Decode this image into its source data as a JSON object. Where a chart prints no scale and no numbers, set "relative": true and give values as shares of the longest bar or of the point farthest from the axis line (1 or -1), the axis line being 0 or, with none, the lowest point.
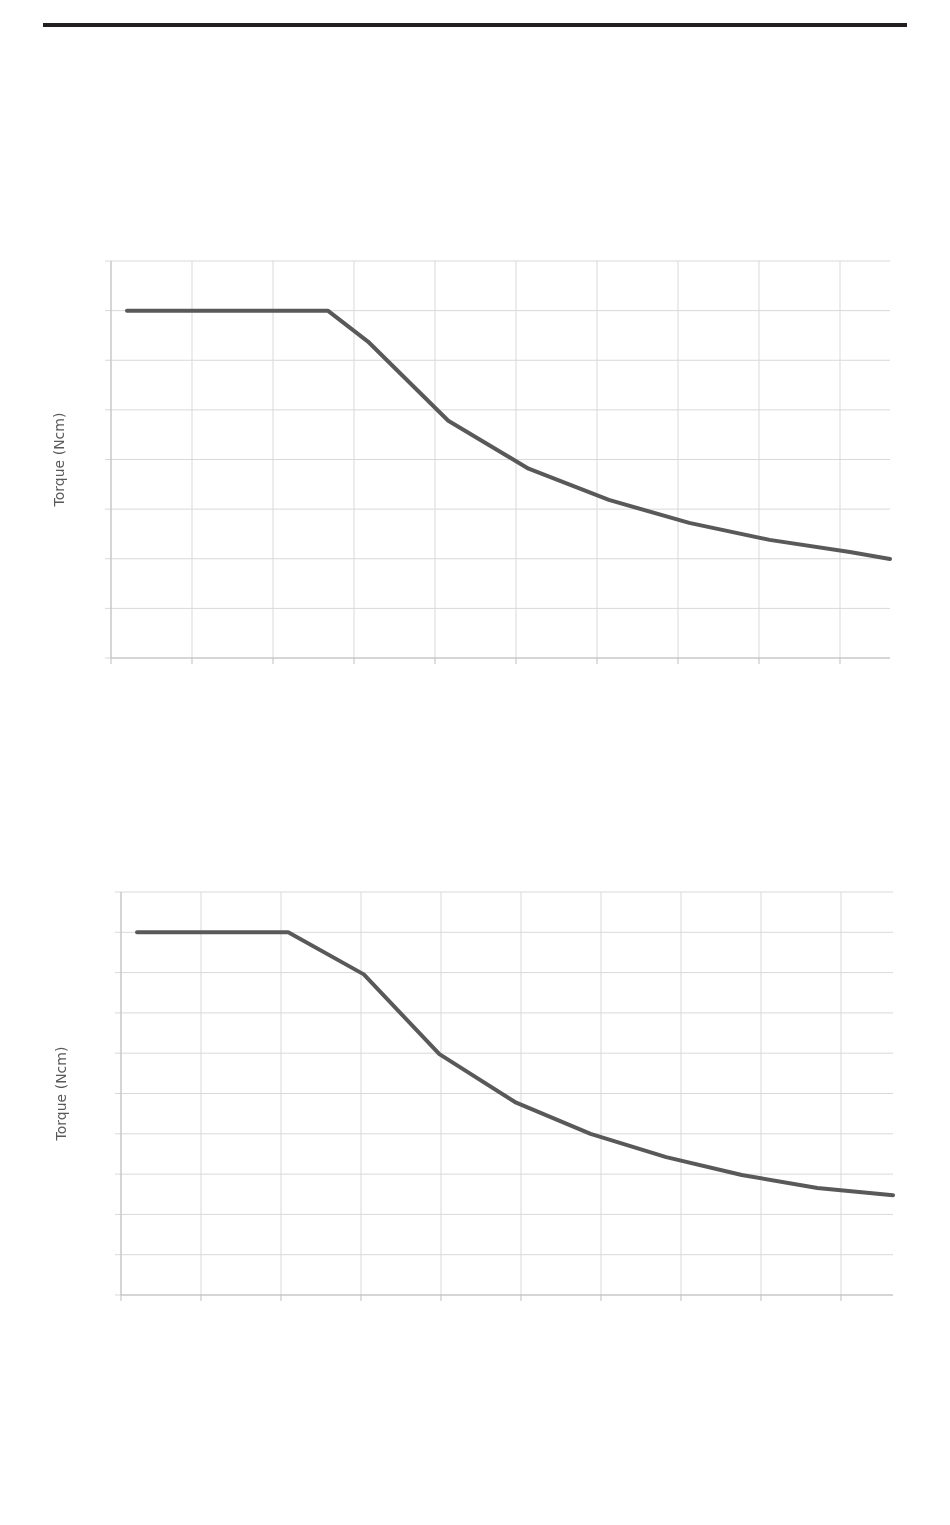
{
  "chart_data": [
    {
      "type": "line",
      "ylabel": "Torque (Ncm)",
      "relative": true,
      "grid": true,
      "marker": "none",
      "line_style": "solid",
      "categories": [
        null,
        null,
        null,
        null,
        null,
        null,
        null,
        null,
        null,
        null,
        null,
        null,
        null,
        null,
        null,
        null,
        null,
        null,
        null,
        null
      ],
      "series": [
        {
          "color": "#595959",
          "values": [
            1,
            null,
            null,
            null,
            null,
            1,
            0.911,
            null,
            0.683,
            null,
            0.545,
            null,
            0.455,
            null,
            0.389,
            null,
            0.34,
            null,
            0.305,
            0.285
          ]
        }
      ]
    },
    {
      "type": "line",
      "ylabel": "Torque (Ncm)",
      "relative": true,
      "grid": true,
      "marker": "none",
      "line_style": "solid",
      "categories": [
        null,
        null,
        null,
        null,
        null,
        null,
        null,
        null,
        null,
        null,
        null
      ],
      "series": [
        {
          "color": "#595959",
          "values": [
            1,
            null,
            1,
            0.884,
            0.664,
            0.532,
            0.444,
            0.38,
            0.331,
            0.295,
            0.275
          ]
        }
      ]
    }
  ]
}
